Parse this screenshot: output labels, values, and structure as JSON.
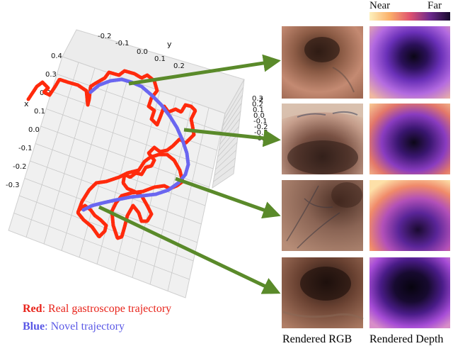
{
  "colorbar": {
    "near_label": "Near",
    "far_label": "Far"
  },
  "plot3d": {
    "y_axis_label": "y",
    "x_axis_label": "x",
    "z_axis_label": "z",
    "y_ticks": [
      "-0.2",
      "-0.1",
      "0.0",
      "0.1",
      "0.2"
    ],
    "x_ticks": [
      "0.4",
      "0.3",
      "0.2",
      "0.1",
      "0.0",
      "-0.1",
      "-0.2",
      "-0.3"
    ],
    "z_ticks": [
      "0.3",
      "0.2",
      "0.1",
      "0.0",
      "-0.1",
      "-0.2",
      "-0.3",
      "-0.4"
    ],
    "red_series_color": "#ff2a0c",
    "blue_series_color": "#6a66f0"
  },
  "legend": {
    "red_key": "Red",
    "red_text": ": Real gastroscope trajectory",
    "blue_key": "Blue",
    "blue_text": ": Novel trajectory",
    "red_color": "#e8231a",
    "blue_color": "#5a58e6"
  },
  "arrow_color": "#5a8a2a",
  "captions": {
    "rgb": "Rendered RGB",
    "depth": "Rendered Depth"
  }
}
